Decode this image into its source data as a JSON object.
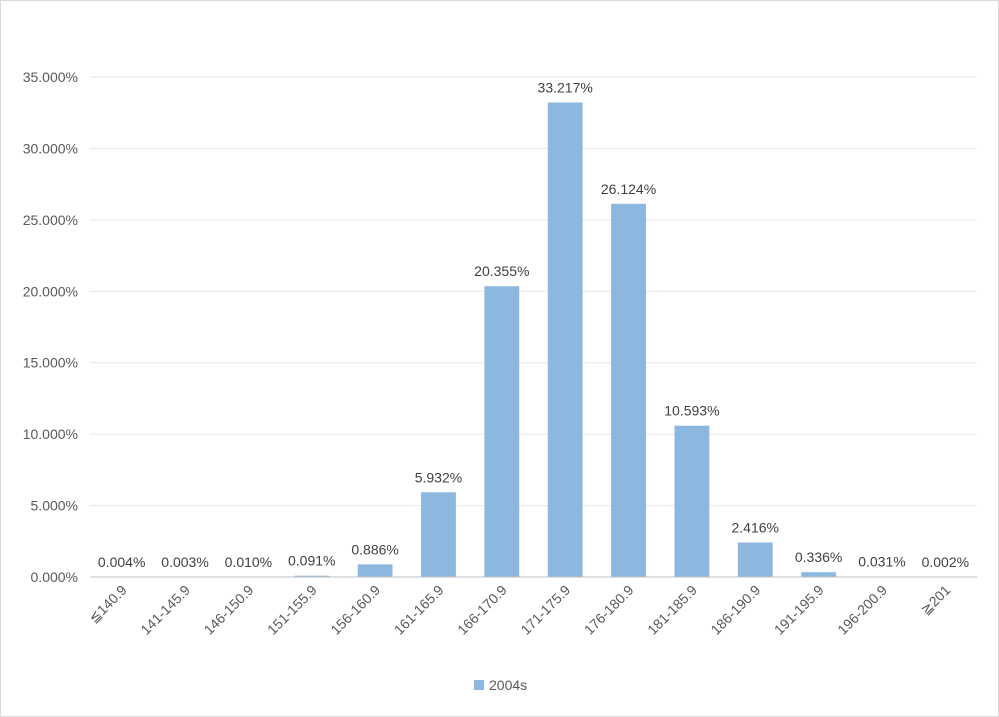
{
  "chart_data": {
    "type": "bar",
    "categories": [
      "≦140.9",
      "141-145.9",
      "146-150.9",
      "151-155.9",
      "156-160.9",
      "161-165.9",
      "166-170.9",
      "171-175.9",
      "176-180.9",
      "181-185.9",
      "186-190.9",
      "191-195.9",
      "196-200.9",
      "≧201"
    ],
    "series": [
      {
        "name": "2004s",
        "values": [
          0.004,
          0.003,
          0.01,
          0.091,
          0.886,
          5.932,
          20.355,
          33.217,
          26.124,
          10.593,
          2.416,
          0.336,
          0.031,
          0.002
        ],
        "data_labels": [
          "0.004%",
          "0.003%",
          "0.010%",
          "0.091%",
          "0.886%",
          "5.932%",
          "20.355%",
          "33.217%",
          "26.124%",
          "10.593%",
          "2.416%",
          "0.336%",
          "0.031%",
          "0.002%"
        ],
        "color": "#8cb8e0"
      }
    ],
    "ylim": [
      0,
      35
    ],
    "ytick_values": [
      0,
      5,
      10,
      15,
      20,
      25,
      30,
      35
    ],
    "ytick_labels": [
      "0.000%",
      "5.000%",
      "10.000%",
      "15.000%",
      "20.000%",
      "25.000%",
      "30.000%",
      "35.000%"
    ],
    "grid": true,
    "legend_position": "bottom",
    "title": "",
    "xlabel": "",
    "ylabel": ""
  },
  "colors": {
    "bar": "#8cb8e0",
    "grid": "#e6e6e6",
    "axis": "#bfbfbf"
  }
}
